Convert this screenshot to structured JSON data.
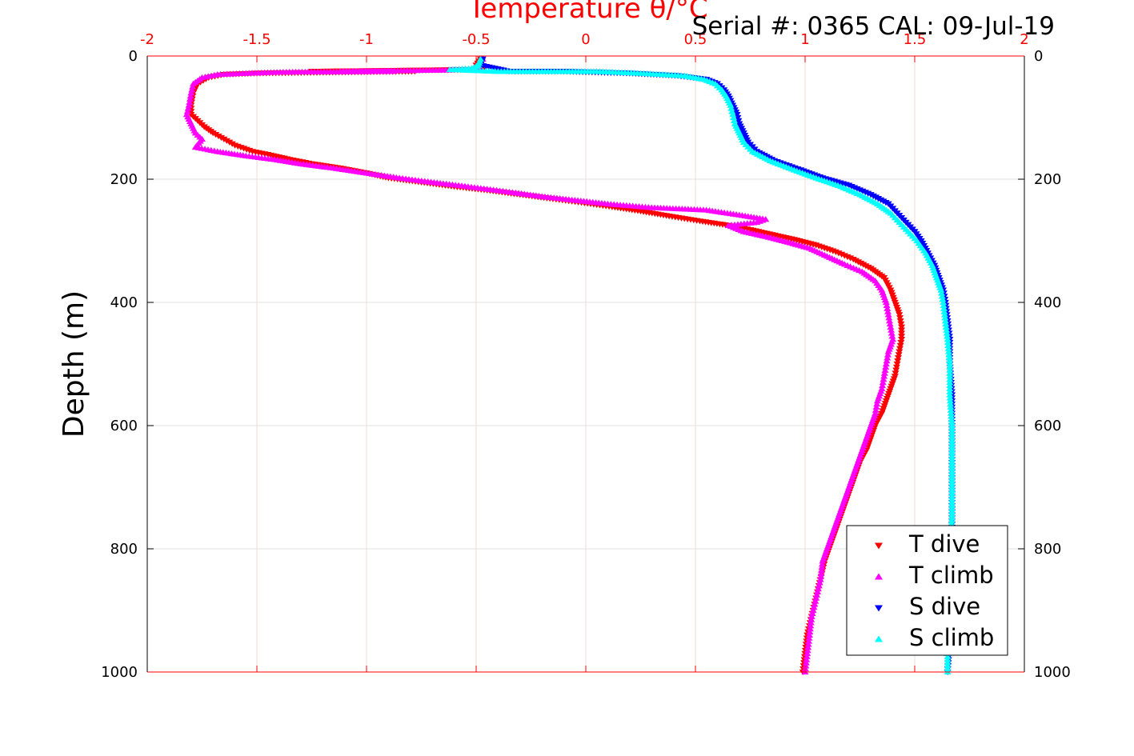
{
  "chart_data": {
    "type": "scatter",
    "title": "Temperature θ/°C",
    "annotation": "Serial #: 0365  CAL: 09-Jul-19",
    "xlabel": "Temperature θ/°C",
    "ylabel": "Depth (m)",
    "xlim": [
      -2,
      2
    ],
    "ylim": [
      0,
      1000
    ],
    "y_reversed": true,
    "x_ticks": [
      "-2",
      "-1.5",
      "-1",
      "-0.5",
      "0",
      "0.5",
      "1",
      "1.5",
      "2"
    ],
    "y_ticks": [
      "0",
      "200",
      "400",
      "600",
      "800",
      "1000"
    ],
    "x_axis_position": "top",
    "grid": true,
    "legend_position": "bottom-right",
    "colors": {
      "axis": "#ff0000",
      "grid": "#e0e0e0",
      "t_dive": "#ff0000",
      "t_climb": "#ff00ff",
      "s_dive": "#0000ff",
      "s_climb": "#00ffff"
    },
    "series": [
      {
        "name": "T dive",
        "marker": "triangle-down",
        "color": "#ff0000",
        "points": [
          [
            -0.48,
            5
          ],
          [
            -0.5,
            15
          ],
          [
            -0.47,
            22
          ],
          [
            -1.25,
            25
          ],
          [
            -0.78,
            25
          ],
          [
            -1.5,
            28
          ],
          [
            -1.65,
            30
          ],
          [
            -1.72,
            35
          ],
          [
            -1.77,
            45
          ],
          [
            -1.79,
            60
          ],
          [
            -1.8,
            80
          ],
          [
            -1.8,
            95
          ],
          [
            -1.77,
            105
          ],
          [
            -1.74,
            115
          ],
          [
            -1.7,
            125
          ],
          [
            -1.65,
            135
          ],
          [
            -1.6,
            145
          ],
          [
            -1.52,
            155
          ],
          [
            -1.45,
            160
          ],
          [
            -1.35,
            168
          ],
          [
            -1.25,
            175
          ],
          [
            -1.12,
            182
          ],
          [
            -1.0,
            190
          ],
          [
            -0.9,
            198
          ],
          [
            -0.75,
            205
          ],
          [
            -0.6,
            212
          ],
          [
            -0.45,
            218
          ],
          [
            -0.3,
            225
          ],
          [
            -0.15,
            232
          ],
          [
            -0.02,
            238
          ],
          [
            0.12,
            245
          ],
          [
            0.25,
            252
          ],
          [
            0.38,
            260
          ],
          [
            0.52,
            268
          ],
          [
            0.65,
            275
          ],
          [
            0.75,
            282
          ],
          [
            0.85,
            290
          ],
          [
            0.95,
            298
          ],
          [
            1.05,
            307
          ],
          [
            1.14,
            318
          ],
          [
            1.22,
            330
          ],
          [
            1.3,
            345
          ],
          [
            1.36,
            360
          ],
          [
            1.39,
            380
          ],
          [
            1.41,
            400
          ],
          [
            1.43,
            420
          ],
          [
            1.44,
            440
          ],
          [
            1.44,
            460
          ],
          [
            1.43,
            480
          ],
          [
            1.42,
            500
          ],
          [
            1.41,
            520
          ],
          [
            1.39,
            540
          ],
          [
            1.37,
            560
          ],
          [
            1.35,
            580
          ],
          [
            1.32,
            600
          ],
          [
            1.3,
            620
          ],
          [
            1.28,
            640
          ],
          [
            1.25,
            660
          ],
          [
            1.23,
            680
          ],
          [
            1.21,
            700
          ],
          [
            1.19,
            720
          ],
          [
            1.17,
            740
          ],
          [
            1.15,
            760
          ],
          [
            1.13,
            780
          ],
          [
            1.11,
            800
          ],
          [
            1.09,
            820
          ],
          [
            1.07,
            850
          ],
          [
            1.05,
            880
          ],
          [
            1.03,
            910
          ],
          [
            1.01,
            940
          ],
          [
            1.0,
            970
          ],
          [
            0.99,
            1000
          ]
        ]
      },
      {
        "name": "T climb",
        "marker": "triangle-up",
        "color": "#ff00ff",
        "points": [
          [
            -0.47,
            5
          ],
          [
            -0.49,
            15
          ],
          [
            -0.48,
            22
          ],
          [
            -1.12,
            25
          ],
          [
            -0.88,
            25
          ],
          [
            -1.38,
            26
          ],
          [
            -1.55,
            28
          ],
          [
            -1.68,
            30
          ],
          [
            -1.75,
            35
          ],
          [
            -1.79,
            45
          ],
          [
            -1.8,
            60
          ],
          [
            -1.81,
            80
          ],
          [
            -1.82,
            95
          ],
          [
            -1.8,
            110
          ],
          [
            -1.78,
            125
          ],
          [
            -1.75,
            135
          ],
          [
            -1.78,
            148
          ],
          [
            -1.68,
            155
          ],
          [
            -1.55,
            162
          ],
          [
            -1.42,
            168
          ],
          [
            -1.3,
            175
          ],
          [
            -1.15,
            182
          ],
          [
            -1.0,
            190
          ],
          [
            -0.85,
            198
          ],
          [
            -0.72,
            204
          ],
          [
            -0.58,
            210
          ],
          [
            -0.45,
            216
          ],
          [
            -0.32,
            222
          ],
          [
            -0.2,
            228
          ],
          [
            -0.05,
            234
          ],
          [
            0.1,
            240
          ],
          [
            0.3,
            246
          ],
          [
            0.55,
            250
          ],
          [
            0.7,
            258
          ],
          [
            0.82,
            265
          ],
          [
            0.78,
            270
          ],
          [
            0.65,
            275
          ],
          [
            0.72,
            285
          ],
          [
            0.82,
            293
          ],
          [
            0.92,
            302
          ],
          [
            1.02,
            312
          ],
          [
            1.1,
            325
          ],
          [
            1.18,
            338
          ],
          [
            1.26,
            350
          ],
          [
            1.32,
            365
          ],
          [
            1.35,
            380
          ],
          [
            1.37,
            400
          ],
          [
            1.38,
            420
          ],
          [
            1.39,
            440
          ],
          [
            1.4,
            460
          ],
          [
            1.38,
            480
          ],
          [
            1.37,
            500
          ],
          [
            1.36,
            520
          ],
          [
            1.35,
            540
          ],
          [
            1.33,
            560
          ],
          [
            1.32,
            580
          ],
          [
            1.3,
            600
          ],
          [
            1.28,
            620
          ],
          [
            1.26,
            640
          ],
          [
            1.24,
            660
          ],
          [
            1.22,
            680
          ],
          [
            1.2,
            700
          ],
          [
            1.18,
            720
          ],
          [
            1.16,
            740
          ],
          [
            1.14,
            760
          ],
          [
            1.12,
            780
          ],
          [
            1.1,
            800
          ],
          [
            1.08,
            820
          ],
          [
            1.07,
            850
          ],
          [
            1.05,
            880
          ],
          [
            1.03,
            910
          ],
          [
            1.02,
            940
          ],
          [
            1.01,
            970
          ],
          [
            1.0,
            1000
          ]
        ]
      },
      {
        "name": "S dive",
        "marker": "triangle-down",
        "color": "#0000ff",
        "points": [
          [
            -0.47,
            5
          ],
          [
            -0.48,
            15
          ],
          [
            -0.35,
            25
          ],
          [
            -0.1,
            25
          ],
          [
            0.2,
            28
          ],
          [
            0.42,
            32
          ],
          [
            0.55,
            38
          ],
          [
            0.6,
            45
          ],
          [
            0.63,
            55
          ],
          [
            0.65,
            65
          ],
          [
            0.67,
            80
          ],
          [
            0.69,
            95
          ],
          [
            0.7,
            110
          ],
          [
            0.72,
            125
          ],
          [
            0.74,
            140
          ],
          [
            0.78,
            155
          ],
          [
            0.86,
            170
          ],
          [
            0.98,
            185
          ],
          [
            1.08,
            198
          ],
          [
            1.2,
            210
          ],
          [
            1.3,
            225
          ],
          [
            1.38,
            240
          ],
          [
            1.42,
            255
          ],
          [
            1.46,
            270
          ],
          [
            1.5,
            285
          ],
          [
            1.53,
            300
          ],
          [
            1.56,
            320
          ],
          [
            1.59,
            340
          ],
          [
            1.61,
            360
          ],
          [
            1.63,
            380
          ],
          [
            1.64,
            400
          ],
          [
            1.65,
            430
          ],
          [
            1.66,
            460
          ],
          [
            1.66,
            500
          ],
          [
            1.67,
            550
          ],
          [
            1.67,
            600
          ],
          [
            1.67,
            650
          ],
          [
            1.67,
            700
          ],
          [
            1.67,
            750
          ],
          [
            1.67,
            800
          ],
          [
            1.66,
            850
          ],
          [
            1.66,
            900
          ],
          [
            1.66,
            950
          ],
          [
            1.65,
            1000
          ]
        ]
      },
      {
        "name": "S climb",
        "marker": "triangle-up",
        "color": "#00ffff",
        "points": [
          [
            -0.48,
            5
          ],
          [
            -0.49,
            15
          ],
          [
            -0.52,
            20
          ],
          [
            -0.62,
            22
          ],
          [
            -0.4,
            25
          ],
          [
            -0.2,
            25
          ],
          [
            0.05,
            25
          ],
          [
            0.25,
            28
          ],
          [
            0.45,
            32
          ],
          [
            0.54,
            38
          ],
          [
            0.59,
            45
          ],
          [
            0.62,
            55
          ],
          [
            0.64,
            65
          ],
          [
            0.66,
            80
          ],
          [
            0.67,
            95
          ],
          [
            0.68,
            110
          ],
          [
            0.7,
            125
          ],
          [
            0.72,
            140
          ],
          [
            0.76,
            155
          ],
          [
            0.84,
            170
          ],
          [
            0.95,
            185
          ],
          [
            1.05,
            198
          ],
          [
            1.15,
            210
          ],
          [
            1.25,
            225
          ],
          [
            1.33,
            240
          ],
          [
            1.39,
            255
          ],
          [
            1.43,
            270
          ],
          [
            1.47,
            285
          ],
          [
            1.51,
            300
          ],
          [
            1.55,
            320
          ],
          [
            1.58,
            340
          ],
          [
            1.6,
            360
          ],
          [
            1.62,
            380
          ],
          [
            1.63,
            400
          ],
          [
            1.64,
            430
          ],
          [
            1.65,
            460
          ],
          [
            1.66,
            500
          ],
          [
            1.66,
            550
          ],
          [
            1.67,
            600
          ],
          [
            1.67,
            650
          ],
          [
            1.67,
            700
          ],
          [
            1.67,
            750
          ],
          [
            1.66,
            800
          ],
          [
            1.66,
            850
          ],
          [
            1.66,
            900
          ],
          [
            1.65,
            950
          ],
          [
            1.65,
            1000
          ]
        ]
      }
    ]
  }
}
